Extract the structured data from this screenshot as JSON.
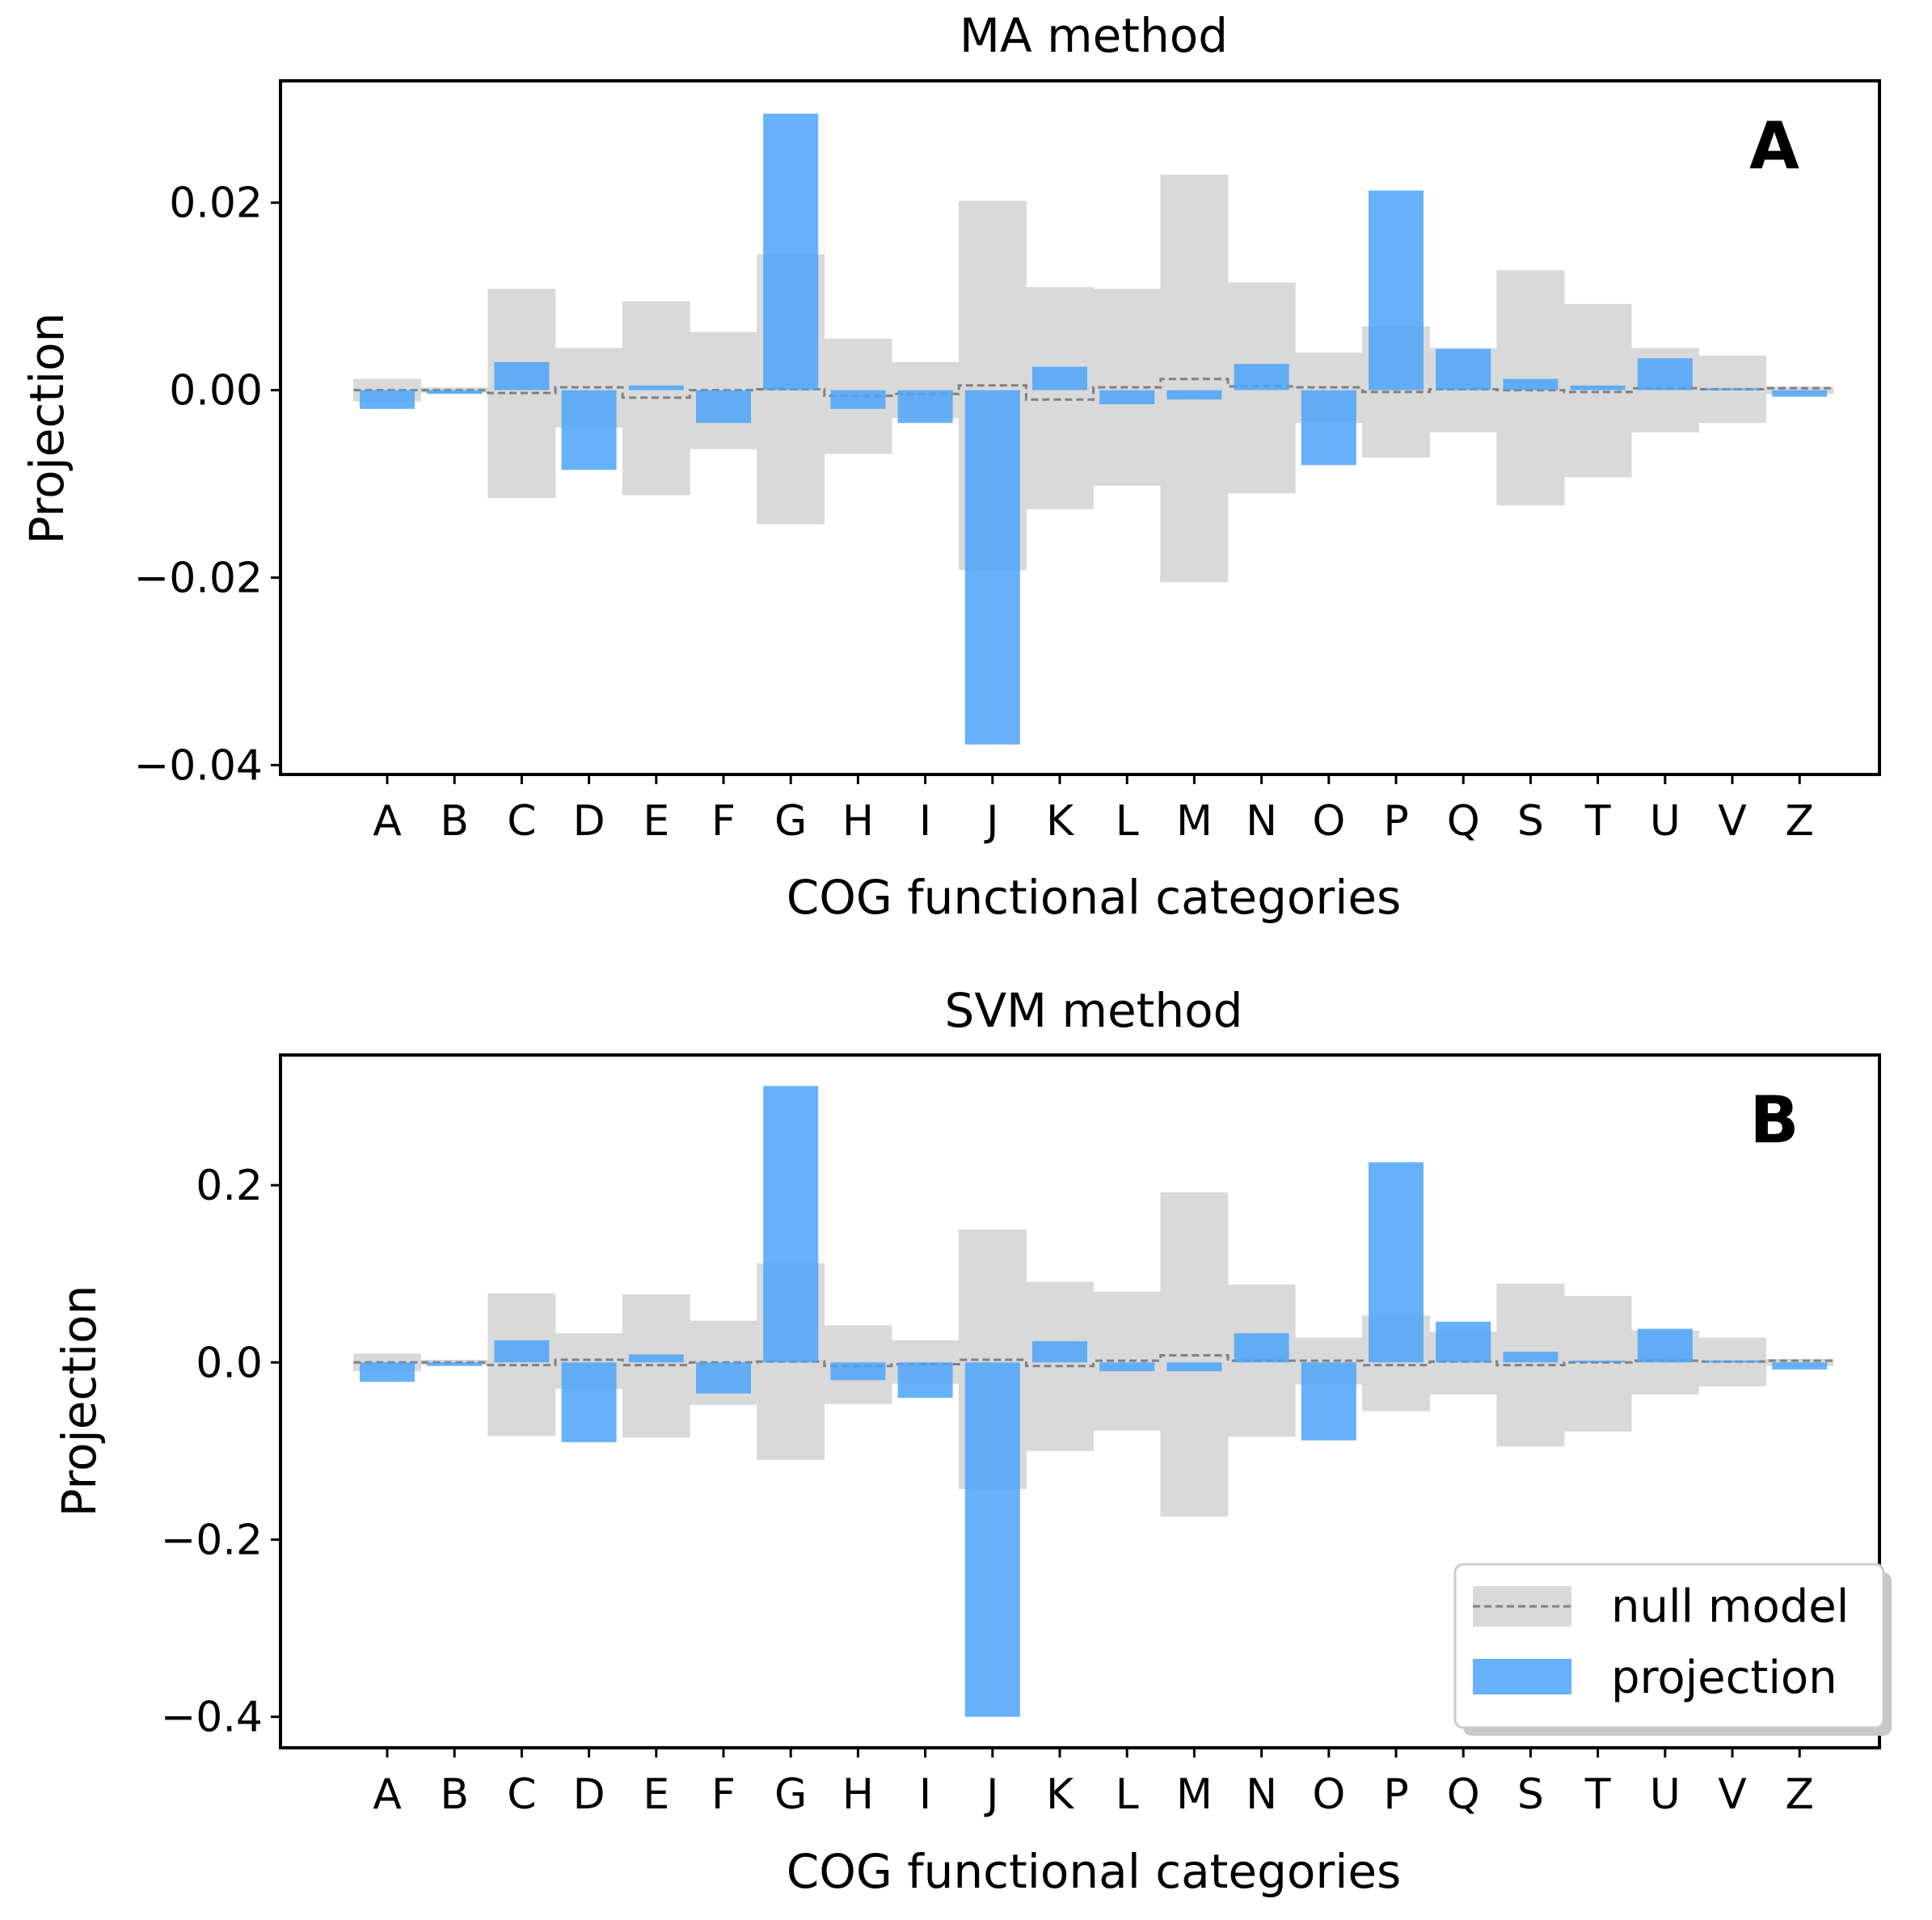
{
  "chart_data": [
    {
      "type": "bar",
      "panel": "A",
      "title": "MA method",
      "xlabel": "COG functional categories",
      "ylabel": "Projection",
      "ylim": [
        -0.041,
        0.033
      ],
      "yticks": [
        0.02,
        0.0,
        -0.02,
        -0.04
      ],
      "ytick_labels": [
        "0.02",
        "0.00",
        "−0.02",
        "−0.04"
      ],
      "categories": [
        "A",
        "B",
        "C",
        "D",
        "E",
        "F",
        "G",
        "H",
        "I",
        "J",
        "K",
        "L",
        "M",
        "N",
        "O",
        "P",
        "Q",
        "S",
        "T",
        "U",
        "V",
        "Z"
      ],
      "series": [
        {
          "name": "projection",
          "values": [
            -0.002,
            -0.0004,
            0.003,
            -0.0085,
            0.0005,
            -0.0035,
            0.0295,
            -0.002,
            -0.0035,
            -0.0378,
            0.0025,
            -0.0015,
            -0.001,
            0.0028,
            -0.008,
            0.0213,
            0.0044,
            0.0012,
            0.0005,
            0.0034,
            0.0002,
            -0.0007
          ]
        },
        {
          "name": "null model",
          "values": [
            0.0,
            0.0,
            -0.0003,
            0.0003,
            -0.0008,
            0.0,
            0.0001,
            -0.0006,
            -0.0004,
            0.0005,
            -0.001,
            0.0003,
            0.0012,
            0.0004,
            0.0003,
            -0.0002,
            0.0001,
            0.0,
            -0.0002,
            0.0002,
            0.0001,
            0.0002
          ]
        },
        {
          "name": "null band upper",
          "values": [
            0.0012,
            0.0003,
            0.0108,
            0.0045,
            0.0095,
            0.0062,
            0.0145,
            0.0055,
            0.003,
            0.0202,
            0.011,
            0.0108,
            0.023,
            0.0115,
            0.004,
            0.0068,
            0.0045,
            0.0128,
            0.0092,
            0.0045,
            0.0037,
            0.0004
          ]
        },
        {
          "name": "null band lower",
          "values": [
            -0.0012,
            -0.0003,
            -0.0115,
            -0.004,
            -0.0112,
            -0.0063,
            -0.0143,
            -0.0068,
            -0.003,
            -0.0192,
            -0.0127,
            -0.0102,
            -0.0205,
            -0.011,
            -0.0035,
            -0.0072,
            -0.0045,
            -0.0123,
            -0.0093,
            -0.0045,
            -0.0035,
            -0.0004
          ]
        }
      ]
    },
    {
      "type": "bar",
      "panel": "B",
      "title": "SVM method",
      "xlabel": "COG functional categories",
      "ylabel": "Projection",
      "ylim": [
        -0.435,
        0.347
      ],
      "yticks": [
        0.2,
        0.0,
        -0.2,
        -0.4
      ],
      "ytick_labels": [
        "0.2",
        "0.0",
        "−0.2",
        "−0.4"
      ],
      "categories": [
        "A",
        "B",
        "C",
        "D",
        "E",
        "F",
        "G",
        "H",
        "I",
        "J",
        "K",
        "L",
        "M",
        "N",
        "O",
        "P",
        "Q",
        "S",
        "T",
        "U",
        "V",
        "Z"
      ],
      "series": [
        {
          "name": "projection",
          "values": [
            -0.022,
            -0.004,
            0.025,
            -0.09,
            0.009,
            -0.035,
            0.312,
            -0.02,
            -0.04,
            -0.4,
            0.024,
            -0.01,
            -0.01,
            0.033,
            -0.088,
            0.226,
            0.046,
            0.012,
            0.002,
            0.038,
            0.002,
            -0.008
          ]
        },
        {
          "name": "null model",
          "values": [
            0.0,
            0.0,
            -0.003,
            0.003,
            -0.003,
            0.0,
            0.001,
            -0.004,
            -0.002,
            0.003,
            -0.004,
            0.002,
            0.008,
            0.002,
            0.002,
            -0.003,
            0.001,
            -0.003,
            0.0,
            0.002,
            0.001,
            0.002
          ]
        },
        {
          "name": "null band upper",
          "values": [
            0.01,
            0.003,
            0.078,
            0.033,
            0.077,
            0.047,
            0.112,
            0.042,
            0.025,
            0.15,
            0.091,
            0.08,
            0.192,
            0.088,
            0.028,
            0.053,
            0.035,
            0.089,
            0.075,
            0.036,
            0.028,
            0.004
          ]
        },
        {
          "name": "null band lower",
          "values": [
            -0.01,
            -0.003,
            -0.083,
            -0.03,
            -0.085,
            -0.048,
            -0.11,
            -0.047,
            -0.024,
            -0.143,
            -0.1,
            -0.077,
            -0.174,
            -0.084,
            -0.025,
            -0.055,
            -0.036,
            -0.095,
            -0.078,
            -0.036,
            -0.027,
            -0.004
          ]
        }
      ],
      "legend": {
        "location": "lower-right",
        "entries": [
          "null model",
          "projection"
        ]
      }
    }
  ],
  "colors": {
    "projection": "#4ba3f9",
    "null_band": "#d9d9d9",
    "null_line": "#808080",
    "axis": "#000000"
  }
}
